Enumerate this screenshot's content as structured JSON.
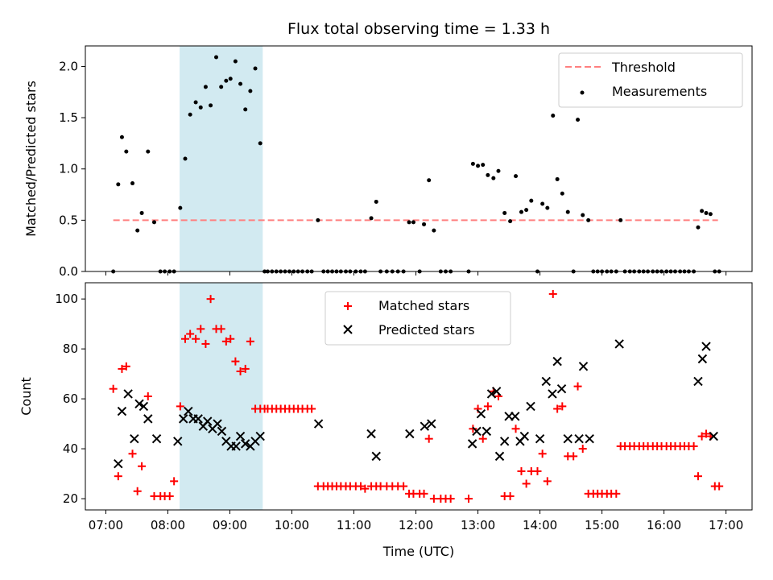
{
  "chart_data": {
    "type": "scatter",
    "title": "Flux total observing time = 1.33 h",
    "xlabel": "Time (UTC)",
    "xticks": [
      "07:00",
      "08:00",
      "09:00",
      "10:00",
      "11:00",
      "12:00",
      "13:00",
      "14:00",
      "15:00",
      "16:00",
      "17:00"
    ],
    "xlim": [
      6.67,
      17.42
    ],
    "shaded_interval": [
      8.19,
      9.53
    ],
    "shade_color": "#add8e6",
    "panels": [
      {
        "ylabel": "Matched/Predicted stars",
        "ylim": [
          0,
          2.2
        ],
        "yticks": [
          "0.0",
          "0.5",
          "1.0",
          "1.5",
          "2.0"
        ],
        "ytick_values": [
          0,
          0.5,
          1.0,
          1.5,
          2.0
        ],
        "legend_position": "top-right",
        "series": [
          {
            "name": "Threshold",
            "kind": "dashed-line",
            "color": "#ff7f7f",
            "x": [
              7.12,
              16.87
            ],
            "y": [
              0.5,
              0.5
            ]
          },
          {
            "name": "Measurements",
            "kind": "dot",
            "color": "#000000",
            "x": [
              7.12,
              7.2,
              7.26,
              7.33,
              7.43,
              7.51,
              7.58,
              7.68,
              7.78,
              7.88,
              7.95,
              8.03,
              8.1,
              8.2,
              8.28,
              8.36,
              8.45,
              8.53,
              8.61,
              8.69,
              8.78,
              8.86,
              8.94,
              9.01,
              9.09,
              9.17,
              9.25,
              9.33,
              9.41,
              9.49,
              9.56,
              9.61,
              9.68,
              9.75,
              9.82,
              9.89,
              9.96,
              10.03,
              10.1,
              10.17,
              10.25,
              10.32,
              10.42,
              10.51,
              10.58,
              10.65,
              10.72,
              10.79,
              10.87,
              10.94,
              11.03,
              11.11,
              11.18,
              11.28,
              11.36,
              11.43,
              11.53,
              11.62,
              11.71,
              11.8,
              11.89,
              11.96,
              12.06,
              12.13,
              12.21,
              12.29,
              12.4,
              12.48,
              12.56,
              12.85,
              12.92,
              13.0,
              13.08,
              13.16,
              13.25,
              13.33,
              13.43,
              13.52,
              13.61,
              13.7,
              13.78,
              13.86,
              13.96,
              14.04,
              14.12,
              14.21,
              14.28,
              14.36,
              14.45,
              14.54,
              14.61,
              14.69,
              14.78,
              14.86,
              14.93,
              15.0,
              15.08,
              15.15,
              15.23,
              15.3,
              15.37,
              15.45,
              15.52,
              15.6,
              15.67,
              15.74,
              15.82,
              15.89,
              15.96,
              16.04,
              16.11,
              16.18,
              16.26,
              16.33,
              16.4,
              16.48,
              16.55,
              16.61,
              16.68,
              16.75,
              16.82,
              16.89
            ],
            "y": [
              0.0,
              0.85,
              1.31,
              1.17,
              0.86,
              0.4,
              0.57,
              1.17,
              0.48,
              0.0,
              0.0,
              0.0,
              0.0,
              0.62,
              1.1,
              1.53,
              1.65,
              1.6,
              1.8,
              1.62,
              2.09,
              1.8,
              1.86,
              1.88,
              2.05,
              1.83,
              1.58,
              1.76,
              1.98,
              1.25,
              0.0,
              0.0,
              0.0,
              0.0,
              0.0,
              0.0,
              0.0,
              0.0,
              0.0,
              0.0,
              0.0,
              0.0,
              0.5,
              0.0,
              0.0,
              0.0,
              0.0,
              0.0,
              0.0,
              0.0,
              0.0,
              0.0,
              0.0,
              0.52,
              0.68,
              0.0,
              0.0,
              0.0,
              0.0,
              0.0,
              0.48,
              0.48,
              0.0,
              0.46,
              0.89,
              0.4,
              0.0,
              0.0,
              0.0,
              0.0,
              1.05,
              1.03,
              1.04,
              0.94,
              0.91,
              0.98,
              0.57,
              0.49,
              0.93,
              0.58,
              0.6,
              0.69,
              0.0,
              0.66,
              0.62,
              1.52,
              0.9,
              0.76,
              0.58,
              0.0,
              1.48,
              0.55,
              0.5,
              0.0,
              0.0,
              0.0,
              0.0,
              0.0,
              0.0,
              0.5,
              0.0,
              0.0,
              0.0,
              0.0,
              0.0,
              0.0,
              0.0,
              0.0,
              0.0,
              0.0,
              0.0,
              0.0,
              0.0,
              0.0,
              0.0,
              0.0,
              0.43,
              0.59,
              0.57,
              0.56,
              0.0,
              0.0
            ]
          }
        ]
      },
      {
        "ylabel": "Count",
        "ylim": [
          15.5,
          106.5
        ],
        "yticks": [
          "20",
          "40",
          "60",
          "80",
          "100"
        ],
        "ytick_values": [
          20,
          40,
          60,
          80,
          100
        ],
        "legend_position": "top-center",
        "series": [
          {
            "name": "Matched stars",
            "kind": "plus",
            "color": "#ff0000",
            "x": [
              7.12,
              7.2,
              7.26,
              7.33,
              7.43,
              7.51,
              7.58,
              7.68,
              7.78,
              7.88,
              7.95,
              8.03,
              8.1,
              8.2,
              8.28,
              8.36,
              8.45,
              8.53,
              8.61,
              8.69,
              8.78,
              8.86,
              8.94,
              9.01,
              9.09,
              9.17,
              9.25,
              9.33,
              9.41,
              9.49,
              9.56,
              9.61,
              9.68,
              9.75,
              9.82,
              9.89,
              9.96,
              10.03,
              10.1,
              10.17,
              10.25,
              10.32,
              10.42,
              10.51,
              10.58,
              10.65,
              10.72,
              10.79,
              10.87,
              10.94,
              11.03,
              11.11,
              11.18,
              11.28,
              11.36,
              11.43,
              11.53,
              11.62,
              11.71,
              11.8,
              11.89,
              11.96,
              12.06,
              12.13,
              12.21,
              12.29,
              12.4,
              12.48,
              12.56,
              12.85,
              12.92,
              13.0,
              13.08,
              13.16,
              13.25,
              13.33,
              13.43,
              13.52,
              13.61,
              13.7,
              13.78,
              13.86,
              13.96,
              14.04,
              14.12,
              14.21,
              14.28,
              14.36,
              14.45,
              14.54,
              14.61,
              14.69,
              14.78,
              14.86,
              14.93,
              15.0,
              15.08,
              15.15,
              15.23,
              15.3,
              15.37,
              15.45,
              15.52,
              15.6,
              15.67,
              15.74,
              15.82,
              15.89,
              15.96,
              16.04,
              16.11,
              16.18,
              16.26,
              16.33,
              16.4,
              16.48,
              16.55,
              16.61,
              16.68,
              16.75,
              16.82,
              16.89
            ],
            "y": [
              64,
              29,
              72,
              73,
              38,
              23,
              33,
              61,
              21,
              21,
              21,
              21,
              27,
              57,
              84,
              86,
              84,
              88,
              82,
              100,
              88,
              88,
              83,
              84,
              75,
              71,
              72,
              83,
              56,
              56,
              56,
              56,
              56,
              56,
              56,
              56,
              56,
              56,
              56,
              56,
              56,
              56,
              25,
              25,
              25,
              25,
              25,
              25,
              25,
              25,
              25,
              25,
              24,
              25,
              25,
              25,
              25,
              25,
              25,
              25,
              22,
              22,
              22,
              22,
              44,
              20,
              20,
              20,
              20,
              20,
              48,
              56,
              44,
              57,
              63,
              61,
              21,
              21,
              48,
              31,
              26,
              31,
              31,
              38,
              27,
              102,
              56,
              57,
              37,
              37,
              65,
              40,
              22,
              22,
              22,
              22,
              22,
              22,
              22,
              41,
              41,
              41,
              41,
              41,
              41,
              41,
              41,
              41,
              41,
              41,
              41,
              41,
              41,
              41,
              41,
              41,
              29,
              45,
              46,
              45,
              25,
              25
            ]
          },
          {
            "name": "Predicted stars",
            "kind": "x",
            "color": "#000000",
            "x": [
              7.2,
              7.26,
              7.36,
              7.46,
              7.54,
              7.61,
              7.68,
              7.82,
              8.16,
              8.25,
              8.33,
              8.41,
              8.49,
              8.57,
              8.64,
              8.72,
              8.8,
              8.87,
              8.94,
              9.02,
              9.1,
              9.17,
              9.25,
              9.33,
              9.41,
              9.49,
              10.43,
              11.28,
              11.36,
              11.9,
              12.14,
              12.25,
              12.91,
              12.98,
              13.05,
              13.14,
              13.22,
              13.3,
              13.35,
              13.43,
              13.5,
              13.6,
              13.68,
              13.75,
              13.85,
              14.0,
              14.1,
              14.2,
              14.28,
              14.35,
              14.45,
              14.63,
              14.7,
              14.8,
              15.28,
              16.55,
              16.62,
              16.68,
              16.8
            ],
            "y": [
              34,
              55,
              62,
              44,
              58,
              57,
              52,
              44,
              43,
              52,
              55,
              52,
              52,
              49,
              51,
              48,
              50,
              47,
              43,
              41,
              41,
              45,
              42,
              41,
              43,
              45,
              50,
              46,
              37,
              46,
              49,
              50,
              42,
              47,
              54,
              47,
              62,
              63,
              37,
              43,
              53,
              53,
              43,
              45,
              57,
              44,
              67,
              62,
              75,
              64,
              44,
              44,
              73,
              44,
              82,
              67,
              76,
              81,
              45
            ]
          }
        ]
      }
    ]
  }
}
